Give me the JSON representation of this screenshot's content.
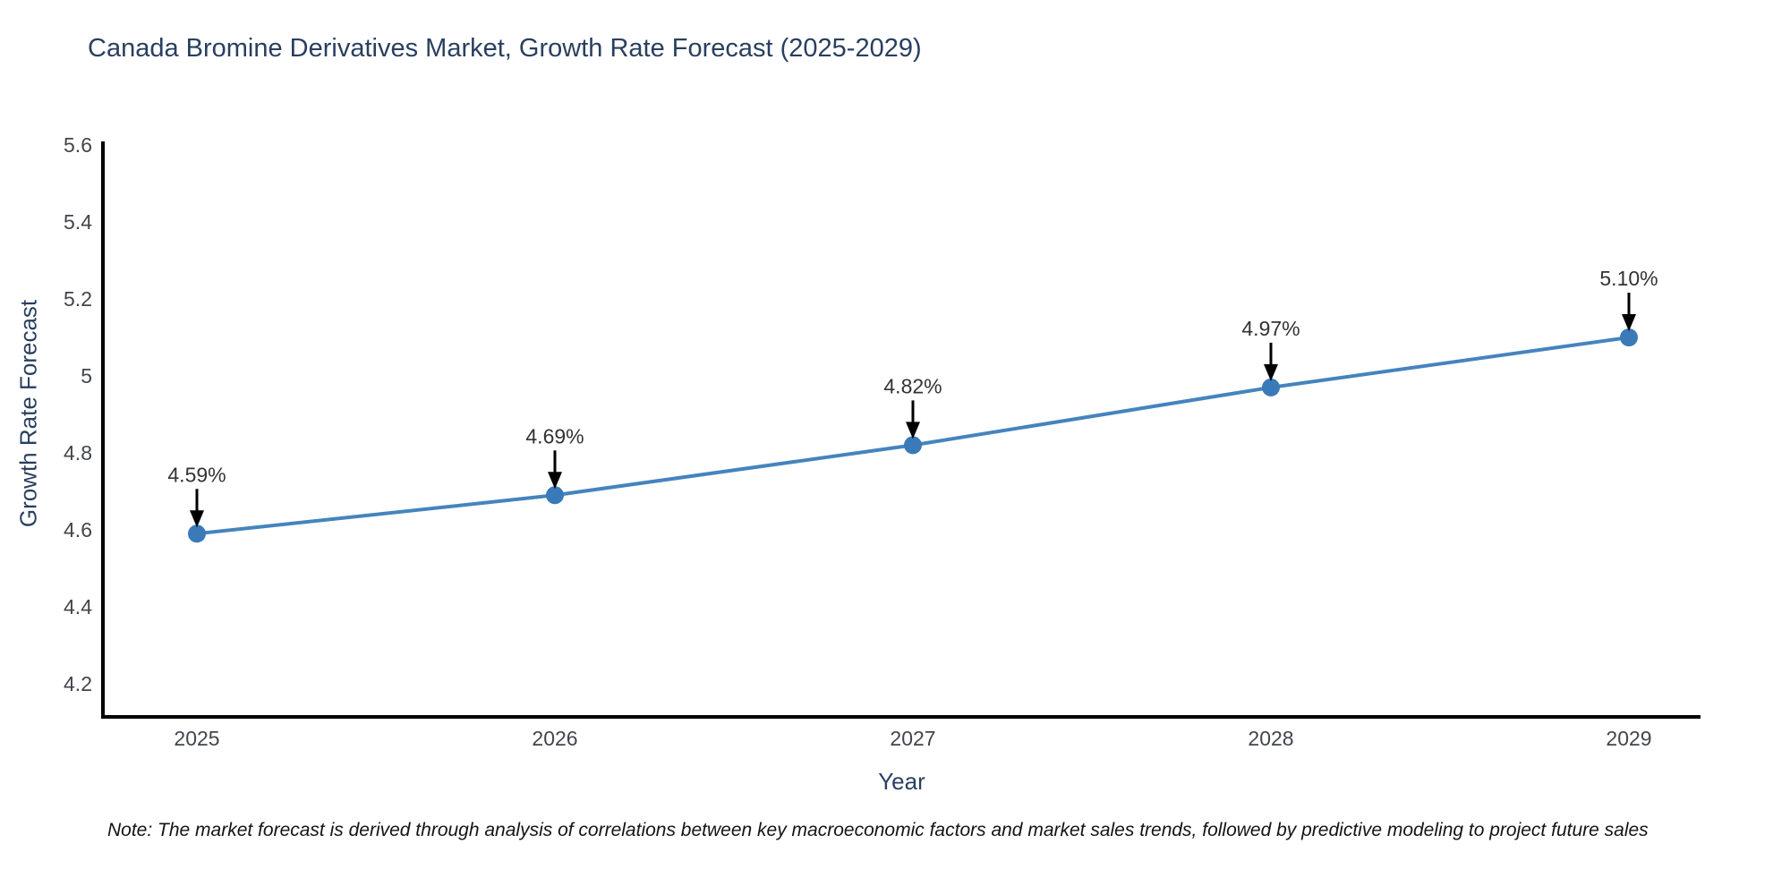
{
  "title": "Canada Bromine Derivatives Market, Growth Rate Forecast (2025-2029)",
  "note": "Note: The market forecast is derived through analysis of correlations between key macroeconomic factors and market sales trends, followed by predictive modeling to project future sales",
  "chart_data": {
    "type": "line",
    "title": "Canada Bromine Derivatives Market, Growth Rate Forecast (2025-2029)",
    "xlabel": "Year",
    "ylabel": "Growth Rate Forecast",
    "x": [
      2025,
      2026,
      2027,
      2028,
      2029
    ],
    "y": [
      4.59,
      4.69,
      4.82,
      4.97,
      5.1
    ],
    "point_labels": [
      "4.59%",
      "4.69%",
      "4.82%",
      "4.97%",
      "5.10%"
    ],
    "xtick_labels": [
      "2025",
      "2026",
      "2027",
      "2028",
      "2029"
    ],
    "ytick_values": [
      4.2,
      4.4,
      4.6,
      4.8,
      5.0,
      5.2,
      5.4,
      5.6
    ],
    "ytick_labels": [
      "4.2",
      "4.4",
      "4.6",
      "4.8",
      "5",
      "5.2",
      "5.4",
      "5.6"
    ],
    "ylim": [
      4.11,
      5.63
    ],
    "grid": false,
    "legend_position": "none",
    "colors": {
      "line": "#4584bd",
      "marker": "#3a7ab8",
      "axis": "#000000",
      "tick_label": "#42454c",
      "annotation_text": "#333333",
      "annotation_arrow": "#000000",
      "title_text": "#2a3f5f",
      "background": "#ffffff"
    }
  }
}
